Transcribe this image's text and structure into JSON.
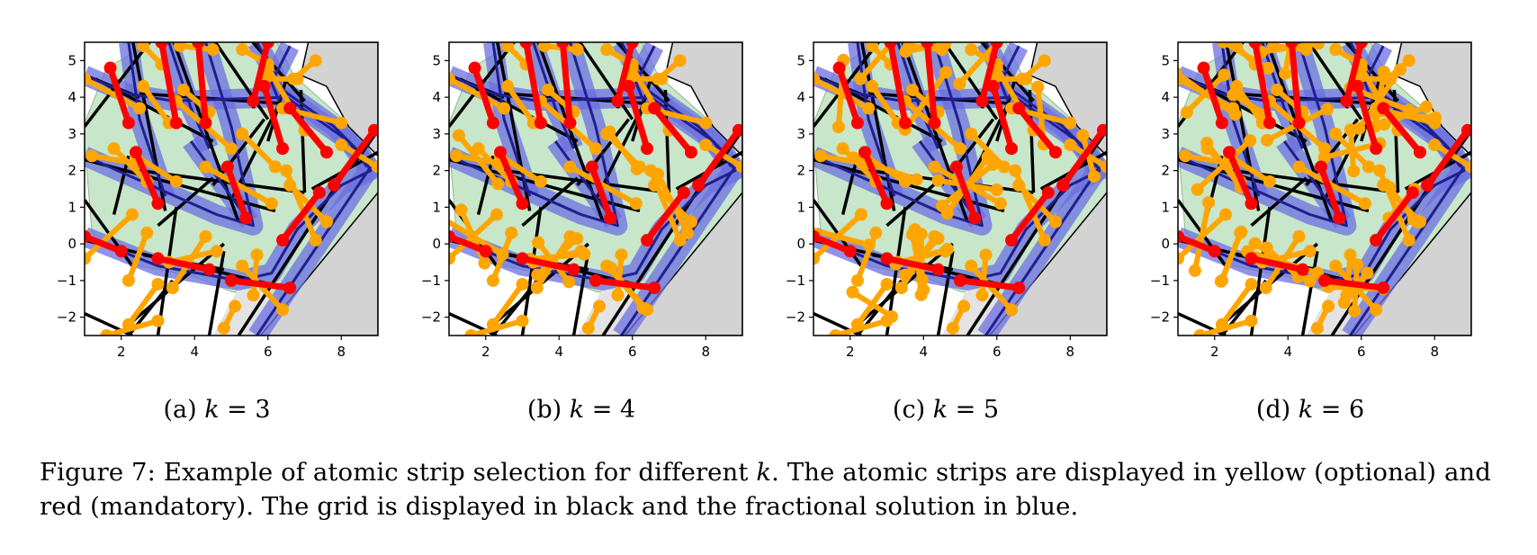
{
  "figure": {
    "caption_label": "Figure 7:",
    "caption_text_1": "Example of atomic strip selection for different ",
    "caption_var": "k",
    "caption_text_2": ". The atomic strips are displayed in yellow (optional) and red (mandatory). The grid is displayed in black and the fractional solution in blue."
  },
  "axes": {
    "xlim": [
      1,
      9
    ],
    "ylim": [
      -2.5,
      5.5
    ],
    "x_ticks": [
      "2",
      "4",
      "6",
      "8"
    ],
    "y_ticks": [
      "5",
      "4",
      "3",
      "2",
      "1",
      "0",
      "−1",
      "−2"
    ]
  },
  "subfigures": [
    {
      "label": "(a)",
      "var": "k",
      "eq": " = 3",
      "k": 3
    },
    {
      "label": "(b)",
      "var": "k",
      "eq": " = 4",
      "k": 4
    },
    {
      "label": "(c)",
      "var": "k",
      "eq": " = 5",
      "k": 5
    },
    {
      "label": "(d)",
      "var": "k",
      "eq": " = 6",
      "k": 6
    }
  ],
  "colors": {
    "grid": "#000000",
    "fractional_solution": "#6b6fe0",
    "optional_strip": "#ffa500",
    "mandatory_strip": "#ff0000",
    "feasible_region": "#c8e6c9",
    "obstacle": "#d3d3d3"
  }
}
